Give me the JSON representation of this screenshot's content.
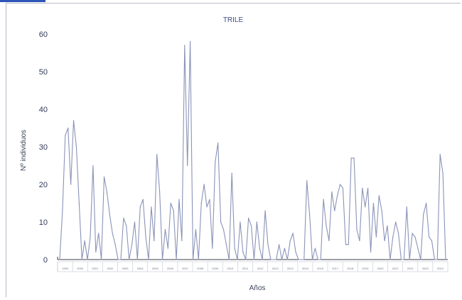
{
  "chart_data": {
    "type": "line",
    "title": "TRILE",
    "xlabel": "Años",
    "ylabel": "Nº individuos",
    "ylim": [
      0,
      60
    ],
    "yticks": [
      0,
      10,
      20,
      30,
      40,
      50,
      60
    ],
    "year_labels": [
      "1999",
      "2000",
      "2001",
      "2002",
      "2003",
      "2004",
      "2005",
      "2006",
      "2007",
      "2008",
      "2009",
      "2010",
      "2011",
      "2012",
      "2013",
      "2014",
      "2015",
      "2016",
      "2017",
      "2018",
      "2019",
      "2020",
      "2021",
      "2022",
      "2023",
      "2024"
    ],
    "colors": {
      "line": "#8a93b8",
      "axis": "#3b3f4a",
      "title": "#3f4a86"
    },
    "grid": false,
    "legend": "none",
    "series": [
      {
        "values": [
          0,
          13,
          33,
          35,
          20,
          37,
          30,
          15,
          0,
          5,
          0,
          6,
          25,
          2,
          7,
          0,
          22,
          18,
          12,
          7,
          4,
          0,
          0,
          11,
          9,
          0,
          4,
          10,
          0,
          14,
          16,
          6,
          0,
          14,
          5,
          28,
          18,
          0,
          8,
          3,
          15,
          13,
          0,
          16,
          5,
          57,
          25,
          58,
          0,
          8,
          0,
          15,
          20,
          14,
          16,
          3,
          26,
          31,
          10,
          8,
          4,
          0,
          23,
          3,
          0,
          10,
          2,
          0,
          11,
          9,
          0,
          10,
          3,
          0,
          13,
          4,
          0,
          0,
          0,
          4,
          0,
          3,
          0,
          5,
          7,
          2,
          0,
          0,
          0,
          21,
          12,
          0,
          3,
          0,
          0,
          16,
          9,
          5,
          18,
          13,
          17,
          20,
          19,
          4,
          4,
          27,
          27,
          8,
          5,
          19,
          14,
          19,
          2,
          15,
          6,
          17,
          13,
          5,
          9,
          0,
          6,
          10,
          7,
          0,
          0,
          14,
          0,
          7,
          6,
          3,
          0,
          12,
          15,
          6,
          5,
          0,
          0,
          28,
          23,
          0
        ]
      }
    ]
  }
}
